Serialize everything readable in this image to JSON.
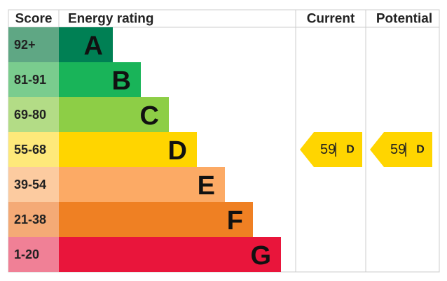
{
  "header": {
    "score": "Score",
    "rating": "Energy rating",
    "current": "Current",
    "potential": "Potential"
  },
  "bands": [
    {
      "range": "92+",
      "letter": "A"
    },
    {
      "range": "81-91",
      "letter": "B"
    },
    {
      "range": "69-80",
      "letter": "C"
    },
    {
      "range": "55-68",
      "letter": "D"
    },
    {
      "range": "39-54",
      "letter": "E"
    },
    {
      "range": "21-38",
      "letter": "F"
    },
    {
      "range": "1-20",
      "letter": "G"
    }
  ],
  "current": {
    "score": 59,
    "band": "D"
  },
  "potential": {
    "score": 59,
    "band": "D"
  }
}
